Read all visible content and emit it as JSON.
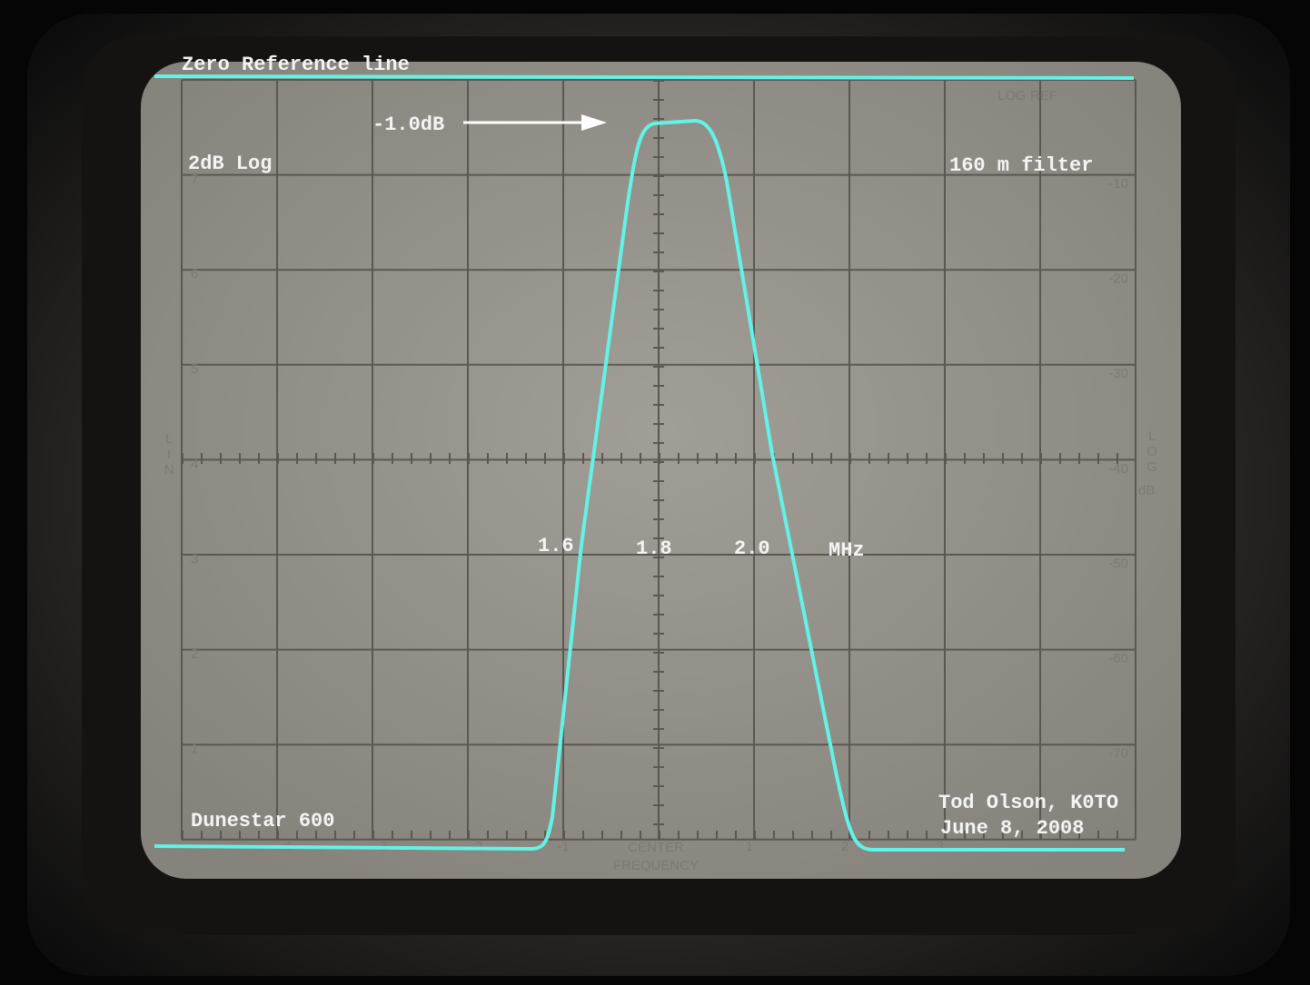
{
  "annotations": {
    "zero_reference": "Zero Reference line",
    "marker": "-1.0dB",
    "scale": "2dB Log",
    "filter": "160 m filter",
    "device": "Dunestar 600",
    "author": "Tod Olson, K0TO",
    "date": "June 8, 2008"
  },
  "frequency_labels": [
    "1.6",
    "1.8",
    "2.0",
    "MHz"
  ],
  "graticule": {
    "lin_scale": [
      "7",
      "6",
      "5",
      "4",
      "3",
      "2",
      "1"
    ],
    "log_scale": [
      "-10",
      "-20",
      "-30",
      "-40",
      "-50",
      "-60",
      "-70"
    ],
    "log_ref": "LOG REF",
    "lin_axis": "LIN",
    "log_axis": "LOG",
    "log_unit": "dB",
    "offsets": [
      "-4",
      "-3",
      "-2",
      "-1",
      "1",
      "2",
      "3"
    ],
    "center": "CENTER",
    "frequency": "FREQUENCY"
  }
}
